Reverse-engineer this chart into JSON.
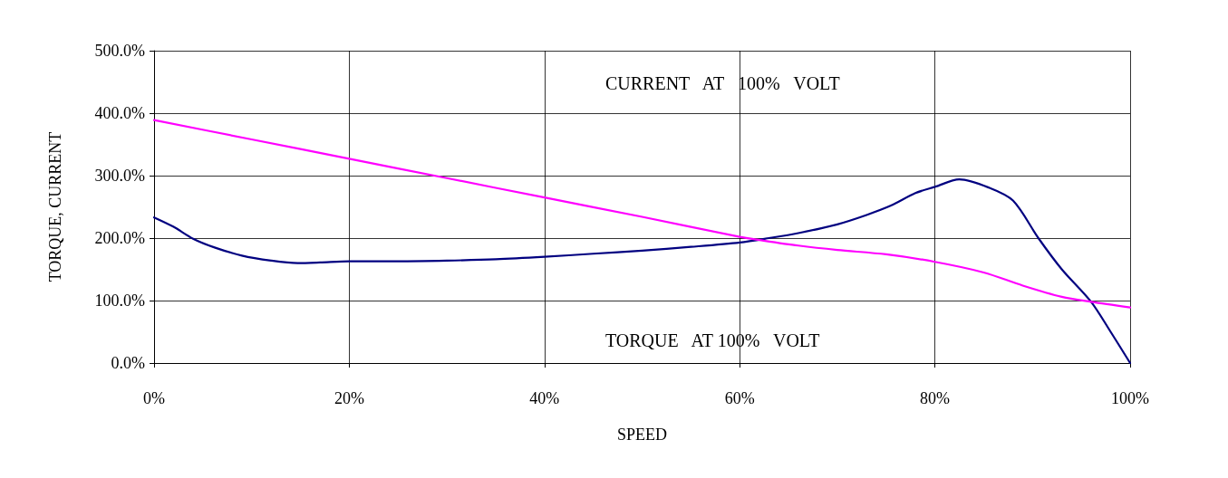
{
  "chart_data": {
    "type": "line",
    "xlabel": "SPEED",
    "ylabel": "TORQUE, CURRENT",
    "annotations": [
      "CURRENT   AT   100%   VOLT",
      "TORQUE   AT 100%   VOLT"
    ],
    "series": [
      {
        "color": "#000080",
        "x": [
          0,
          2,
          4,
          6.2,
          9,
          12,
          14.7,
          17,
          20,
          25,
          30,
          35,
          40,
          45,
          50,
          55,
          60,
          63,
          66,
          70,
          73,
          75.5,
          78,
          80,
          82.5,
          85.5,
          88,
          90.6,
          93,
          96,
          98,
          100
        ],
        "values": [
          233,
          218,
          199,
          185,
          172,
          164,
          160,
          161,
          163,
          163,
          164,
          166,
          170,
          175,
          180,
          186,
          193,
          200,
          208,
          222,
          237,
          252,
          272,
          282,
          294,
          281,
          260,
          200,
          150,
          98,
          50,
          0
        ]
      },
      {
        "color": "#ff00ff",
        "x": [
          0,
          10,
          20,
          30,
          40,
          50,
          60,
          62,
          66,
          70,
          75,
          80,
          85,
          89,
          93,
          96,
          100
        ],
        "values": [
          389,
          358,
          327,
          296,
          265,
          234,
          202,
          197,
          188,
          181,
          174,
          162,
          145,
          124,
          106,
          98,
          89
        ]
      }
    ],
    "xlim": [
      0,
      100
    ],
    "xticks": [
      {
        "value": 0,
        "label": "0%"
      },
      {
        "value": 20,
        "label": "20%"
      },
      {
        "value": 40,
        "label": "40%"
      },
      {
        "value": 60,
        "label": "60%"
      },
      {
        "value": 80,
        "label": "80%"
      },
      {
        "value": 100,
        "label": "100%"
      }
    ],
    "ylim": [
      0,
      500
    ],
    "yticks": [
      {
        "value": 0,
        "label": "0.0%"
      },
      {
        "value": 100,
        "label": "100.0%"
      },
      {
        "value": 200,
        "label": "200.0%"
      },
      {
        "value": 300,
        "label": "300.0%"
      },
      {
        "value": 400,
        "label": "400.0%"
      },
      {
        "value": 500,
        "label": "500.0%"
      }
    ],
    "grid": true,
    "marker": "none",
    "line_style": "solid"
  }
}
